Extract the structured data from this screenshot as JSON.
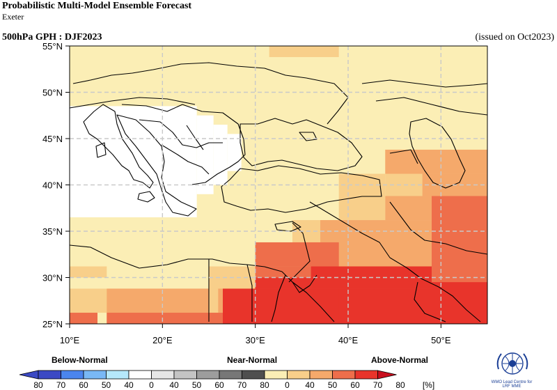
{
  "header": {
    "title": "Probabilistic Multi-Model Ensemble Forecast",
    "subtitle": "Exeter",
    "variable": "500hPa GPH : DJF2023",
    "issued": "(issued on Oct2023)"
  },
  "map": {
    "lon_range": [
      10,
      55
    ],
    "lat_range": [
      25,
      55
    ],
    "lon_labels": [
      {
        "lon": 10,
        "text": "10°E"
      },
      {
        "lon": 20,
        "text": "20°E"
      },
      {
        "lon": 30,
        "text": "30°E"
      },
      {
        "lon": 40,
        "text": "40°E"
      },
      {
        "lon": 50,
        "text": "50°E"
      }
    ],
    "lat_labels": [
      {
        "lat": 55,
        "text": "55°N"
      },
      {
        "lat": 50,
        "text": "50°N"
      },
      {
        "lat": 45,
        "text": "45°N"
      },
      {
        "lat": 40,
        "text": "40°N"
      },
      {
        "lat": 35,
        "text": "35°N"
      },
      {
        "lat": 30,
        "text": "30°N"
      },
      {
        "lat": 25,
        "text": "25°N"
      }
    ],
    "background_class": "an40",
    "regions": [
      {
        "cls": "white",
        "lon0": 10,
        "lon1": 23.7,
        "lat0": 36.5,
        "lat1": 48.5
      },
      {
        "cls": "white",
        "lon0": 23.7,
        "lon1": 25.5,
        "lat0": 39,
        "lat1": 47.5
      },
      {
        "cls": "white",
        "lon0": 25.5,
        "lon1": 27,
        "lat0": 40,
        "lat1": 46.5
      },
      {
        "cls": "white",
        "lon0": 27,
        "lon1": 28.5,
        "lat0": 41.5,
        "lat1": 45.5
      },
      {
        "cls": "an50",
        "lon0": 31.5,
        "lon1": 39,
        "lat0": 53.8,
        "lat1": 55
      },
      {
        "cls": "an50",
        "lon0": 10,
        "lon1": 14,
        "lat0": 30,
        "lat1": 31.2
      },
      {
        "cls": "an50",
        "lon0": 10,
        "lon1": 25,
        "lat0": 26.2,
        "lat1": 28.8
      },
      {
        "cls": "an50",
        "lon0": 25,
        "lon1": 30,
        "lat0": 26.2,
        "lat1": 31.2
      },
      {
        "cls": "an50",
        "lon0": 30,
        "lon1": 34,
        "lat0": 31.2,
        "lat1": 33.8
      },
      {
        "cls": "an50",
        "lon0": 34,
        "lon1": 39,
        "lat0": 33.8,
        "lat1": 36.2
      },
      {
        "cls": "an50",
        "lon0": 39,
        "lon1": 44,
        "lat0": 36.2,
        "lat1": 41.2
      },
      {
        "cls": "an50",
        "lon0": 44,
        "lon1": 55,
        "lat0": 36.2,
        "lat1": 43.8
      },
      {
        "cls": "an60",
        "lon0": 44,
        "lon1": 55,
        "lat0": 41.2,
        "lat1": 43.8
      },
      {
        "cls": "an60",
        "lon0": 48,
        "lon1": 55,
        "lat0": 38.8,
        "lat1": 41.2
      },
      {
        "cls": "an60",
        "lon0": 49,
        "lon1": 55,
        "lat0": 36.2,
        "lat1": 38.8
      },
      {
        "cls": "an60",
        "lon0": 44,
        "lon1": 49,
        "lat0": 36.2,
        "lat1": 38.8
      },
      {
        "cls": "an60",
        "lon0": 37,
        "lon1": 49,
        "lat0": 31.2,
        "lat1": 36.2
      },
      {
        "cls": "an60",
        "lon0": 34,
        "lon1": 39,
        "lat0": 31.2,
        "lat1": 33.8
      },
      {
        "cls": "an60",
        "lon0": 26,
        "lon1": 30,
        "lat0": 26.2,
        "lat1": 28.8
      },
      {
        "cls": "an60",
        "lon0": 14,
        "lon1": 25,
        "lat0": 25,
        "lat1": 28.8
      },
      {
        "cls": "an70",
        "lon0": 49,
        "lon1": 55,
        "lat0": 29,
        "lat1": 38.8
      },
      {
        "cls": "an70",
        "lon0": 37,
        "lon1": 49,
        "lat0": 28.8,
        "lat1": 31.2
      },
      {
        "cls": "an70",
        "lon0": 30,
        "lon1": 37,
        "lat0": 26.2,
        "lat1": 31.2
      },
      {
        "cls": "an70",
        "lon0": 14,
        "lon1": 26.5,
        "lat0": 25,
        "lat1": 26.2
      },
      {
        "cls": "an70",
        "lon0": 10,
        "lon1": 13,
        "lat0": 25,
        "lat1": 26.2
      },
      {
        "cls": "an70",
        "lon0": 30,
        "lon1": 39,
        "lat0": 31.2,
        "lat1": 33.8
      },
      {
        "cls": "an80",
        "lon0": 26.5,
        "lon1": 40,
        "lat0": 25,
        "lat1": 28.8
      },
      {
        "cls": "an80",
        "lon0": 36,
        "lon1": 49,
        "lat0": 28.8,
        "lat1": 31.2
      },
      {
        "cls": "an80",
        "lon0": 39,
        "lon1": 55,
        "lat0": 25,
        "lat1": 28.8
      },
      {
        "cls": "an80",
        "lon0": 49,
        "lon1": 55,
        "lat0": 25,
        "lat1": 29.5
      },
      {
        "cls": "an80",
        "lon0": 30,
        "lon1": 36,
        "lat0": 28.8,
        "lat1": 30
      }
    ]
  },
  "legend": {
    "categories": [
      "Below-Normal",
      "Near-Normal",
      "Above-Normal"
    ],
    "unit": "[%]",
    "labels": [
      "80",
      "70",
      "60",
      "50",
      "40",
      "0",
      "40",
      "50",
      "60",
      "70",
      "80",
      "0",
      "40",
      "50",
      "60",
      "70",
      "80"
    ],
    "colors": {
      "below": [
        "#3b49c4",
        "#4b85ee",
        "#79b8f5",
        "#b5e8fb"
      ],
      "near": [
        "#ffffff",
        "#e6e6e6",
        "#c4c4c4",
        "#9d9d9d",
        "#777777",
        "#4f4f4f"
      ],
      "above": [
        "#fbeeb5",
        "#f8cf8a",
        "#f5a96b",
        "#ee6e4b",
        "#e8342b",
        "#c90f1e"
      ],
      "an40": "#fbeeb5",
      "an50": "#f8cf8a",
      "an60": "#f5a96b",
      "an70": "#ee6e4b",
      "an80": "#e8342b",
      "white": "#ffffff"
    }
  },
  "logo": {
    "text_line1": "WMO Lead Centre for",
    "text_line2": "LRF MME"
  }
}
